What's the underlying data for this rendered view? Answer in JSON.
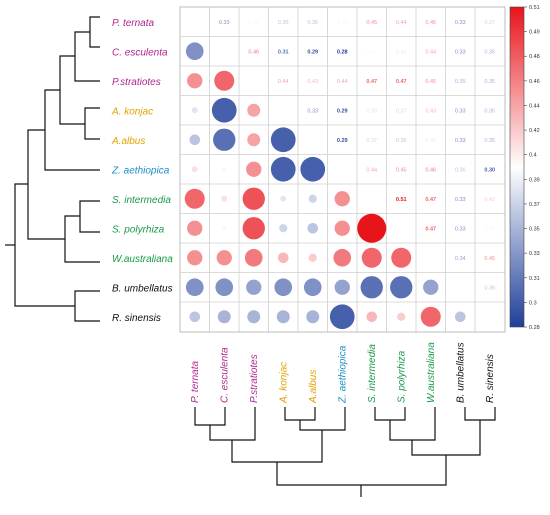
{
  "chart_data": {
    "type": "heatmap",
    "title": "",
    "xlabel": "",
    "ylabel": "",
    "species": [
      {
        "label": "P. ternata",
        "color": "#b0268f"
      },
      {
        "label": "C. esculenta",
        "color": "#b0268f"
      },
      {
        "label": "P.stratiotes",
        "color": "#b0268f"
      },
      {
        "label": "A. konjac",
        "color": "#e0a400"
      },
      {
        "label": "A.albus",
        "color": "#e0a400"
      },
      {
        "label": "Z. aethiopica",
        "color": "#1a8fc6"
      },
      {
        "label": "S. intermedia",
        "color": "#1a9a4a"
      },
      {
        "label": "S. polyrhiza",
        "color": "#1a9a4a"
      },
      {
        "label": "W.australiana",
        "color": "#1a9a4a"
      },
      {
        "label": "B. umbellatus",
        "color": "#111111"
      },
      {
        "label": "R. sinensis",
        "color": "#111111"
      }
    ],
    "matrix": [
      [
        null,
        0.33,
        0.4,
        0.36,
        0.36,
        0.4,
        0.45,
        0.44,
        0.45,
        0.33,
        0.37
      ],
      [
        0.33,
        null,
        0.46,
        0.31,
        0.29,
        0.28,
        0.4,
        0.41,
        0.44,
        0.33,
        0.35
      ],
      [
        0.45,
        0.47,
        null,
        0.44,
        0.43,
        0.44,
        0.47,
        0.47,
        0.45,
        0.35,
        0.35
      ],
      [
        0.38,
        0.3,
        0.44,
        null,
        0.33,
        0.29,
        0.38,
        0.37,
        0.43,
        0.33,
        0.35
      ],
      [
        0.36,
        0.31,
        0.44,
        0.3,
        null,
        0.29,
        0.37,
        0.36,
        0.41,
        0.33,
        0.35
      ],
      [
        0.41,
        0.4,
        0.45,
        0.3,
        0.3,
        null,
        0.44,
        0.45,
        0.46,
        0.36,
        0.3
      ],
      [
        0.47,
        0.41,
        0.48,
        0.38,
        0.37,
        0.45,
        null,
        0.51,
        0.47,
        0.33,
        0.42
      ],
      [
        0.45,
        0.4,
        0.48,
        0.37,
        0.36,
        0.45,
        0.51,
        null,
        0.47,
        0.33,
        0.4
      ],
      [
        0.45,
        0.45,
        0.46,
        0.43,
        0.42,
        0.46,
        0.47,
        0.47,
        null,
        0.34,
        0.45
      ],
      [
        0.33,
        0.33,
        0.34,
        0.33,
        0.33,
        0.34,
        0.31,
        0.31,
        0.34,
        null,
        0.36
      ],
      [
        0.36,
        0.35,
        0.35,
        0.35,
        0.35,
        0.3,
        0.43,
        0.42,
        0.47,
        0.36,
        null
      ]
    ],
    "value_labels": [
      [
        null,
        "0.33",
        "0.40",
        "0.36",
        "0.36",
        "0.40",
        "0.45",
        "0.44",
        "0.45",
        "0.33",
        "0.37"
      ],
      [
        null,
        null,
        "0.46",
        "0.31",
        "0.29",
        "0.28",
        "0.40",
        "0.41",
        "0.44",
        "0.33",
        "0.35"
      ],
      [
        null,
        null,
        null,
        "0.44",
        "0.43",
        "0.44",
        "0.47",
        "0.47",
        "0.45",
        "0.35",
        "0.35"
      ],
      [
        null,
        null,
        null,
        null,
        "0.33",
        "0.29",
        "0.38",
        "0.37",
        "0.43",
        "0.33",
        "0.35"
      ],
      [
        null,
        null,
        null,
        null,
        null,
        "0.29",
        "0.37",
        "0.36",
        "0.41",
        "0.33",
        "0.35"
      ],
      [
        null,
        null,
        null,
        null,
        null,
        null,
        "0.44",
        "0.45",
        "0.46",
        "0.36",
        "0.30"
      ],
      [
        null,
        null,
        null,
        null,
        null,
        null,
        null,
        "0.51",
        "0.47",
        "0.33",
        "0.42"
      ],
      [
        null,
        null,
        null,
        null,
        null,
        null,
        null,
        null,
        "0.47",
        "0.33",
        "0.40"
      ],
      [
        null,
        null,
        null,
        null,
        null,
        null,
        null,
        null,
        null,
        "0.34",
        "0.45"
      ],
      [
        null,
        null,
        null,
        null,
        null,
        null,
        null,
        null,
        null,
        null,
        "0.36"
      ],
      [
        null,
        null,
        null,
        null,
        null,
        null,
        null,
        null,
        null,
        null,
        null
      ]
    ],
    "colorbar": {
      "min": 0.28,
      "max": 0.51,
      "ticks": [
        "0.51",
        "0.49",
        "0.48",
        "0.46",
        "0.44",
        "0.42",
        "0.4",
        "0.39",
        "0.37",
        "0.35",
        "0.33",
        "0.31",
        "0.3",
        "0.28"
      ],
      "low_color": "#1f3f99",
      "mid_color": "#ffffff",
      "high_color": "#e8141b"
    },
    "upper_triangle": "numbers",
    "lower_triangle": "circles",
    "grid": true,
    "legend": "right"
  }
}
